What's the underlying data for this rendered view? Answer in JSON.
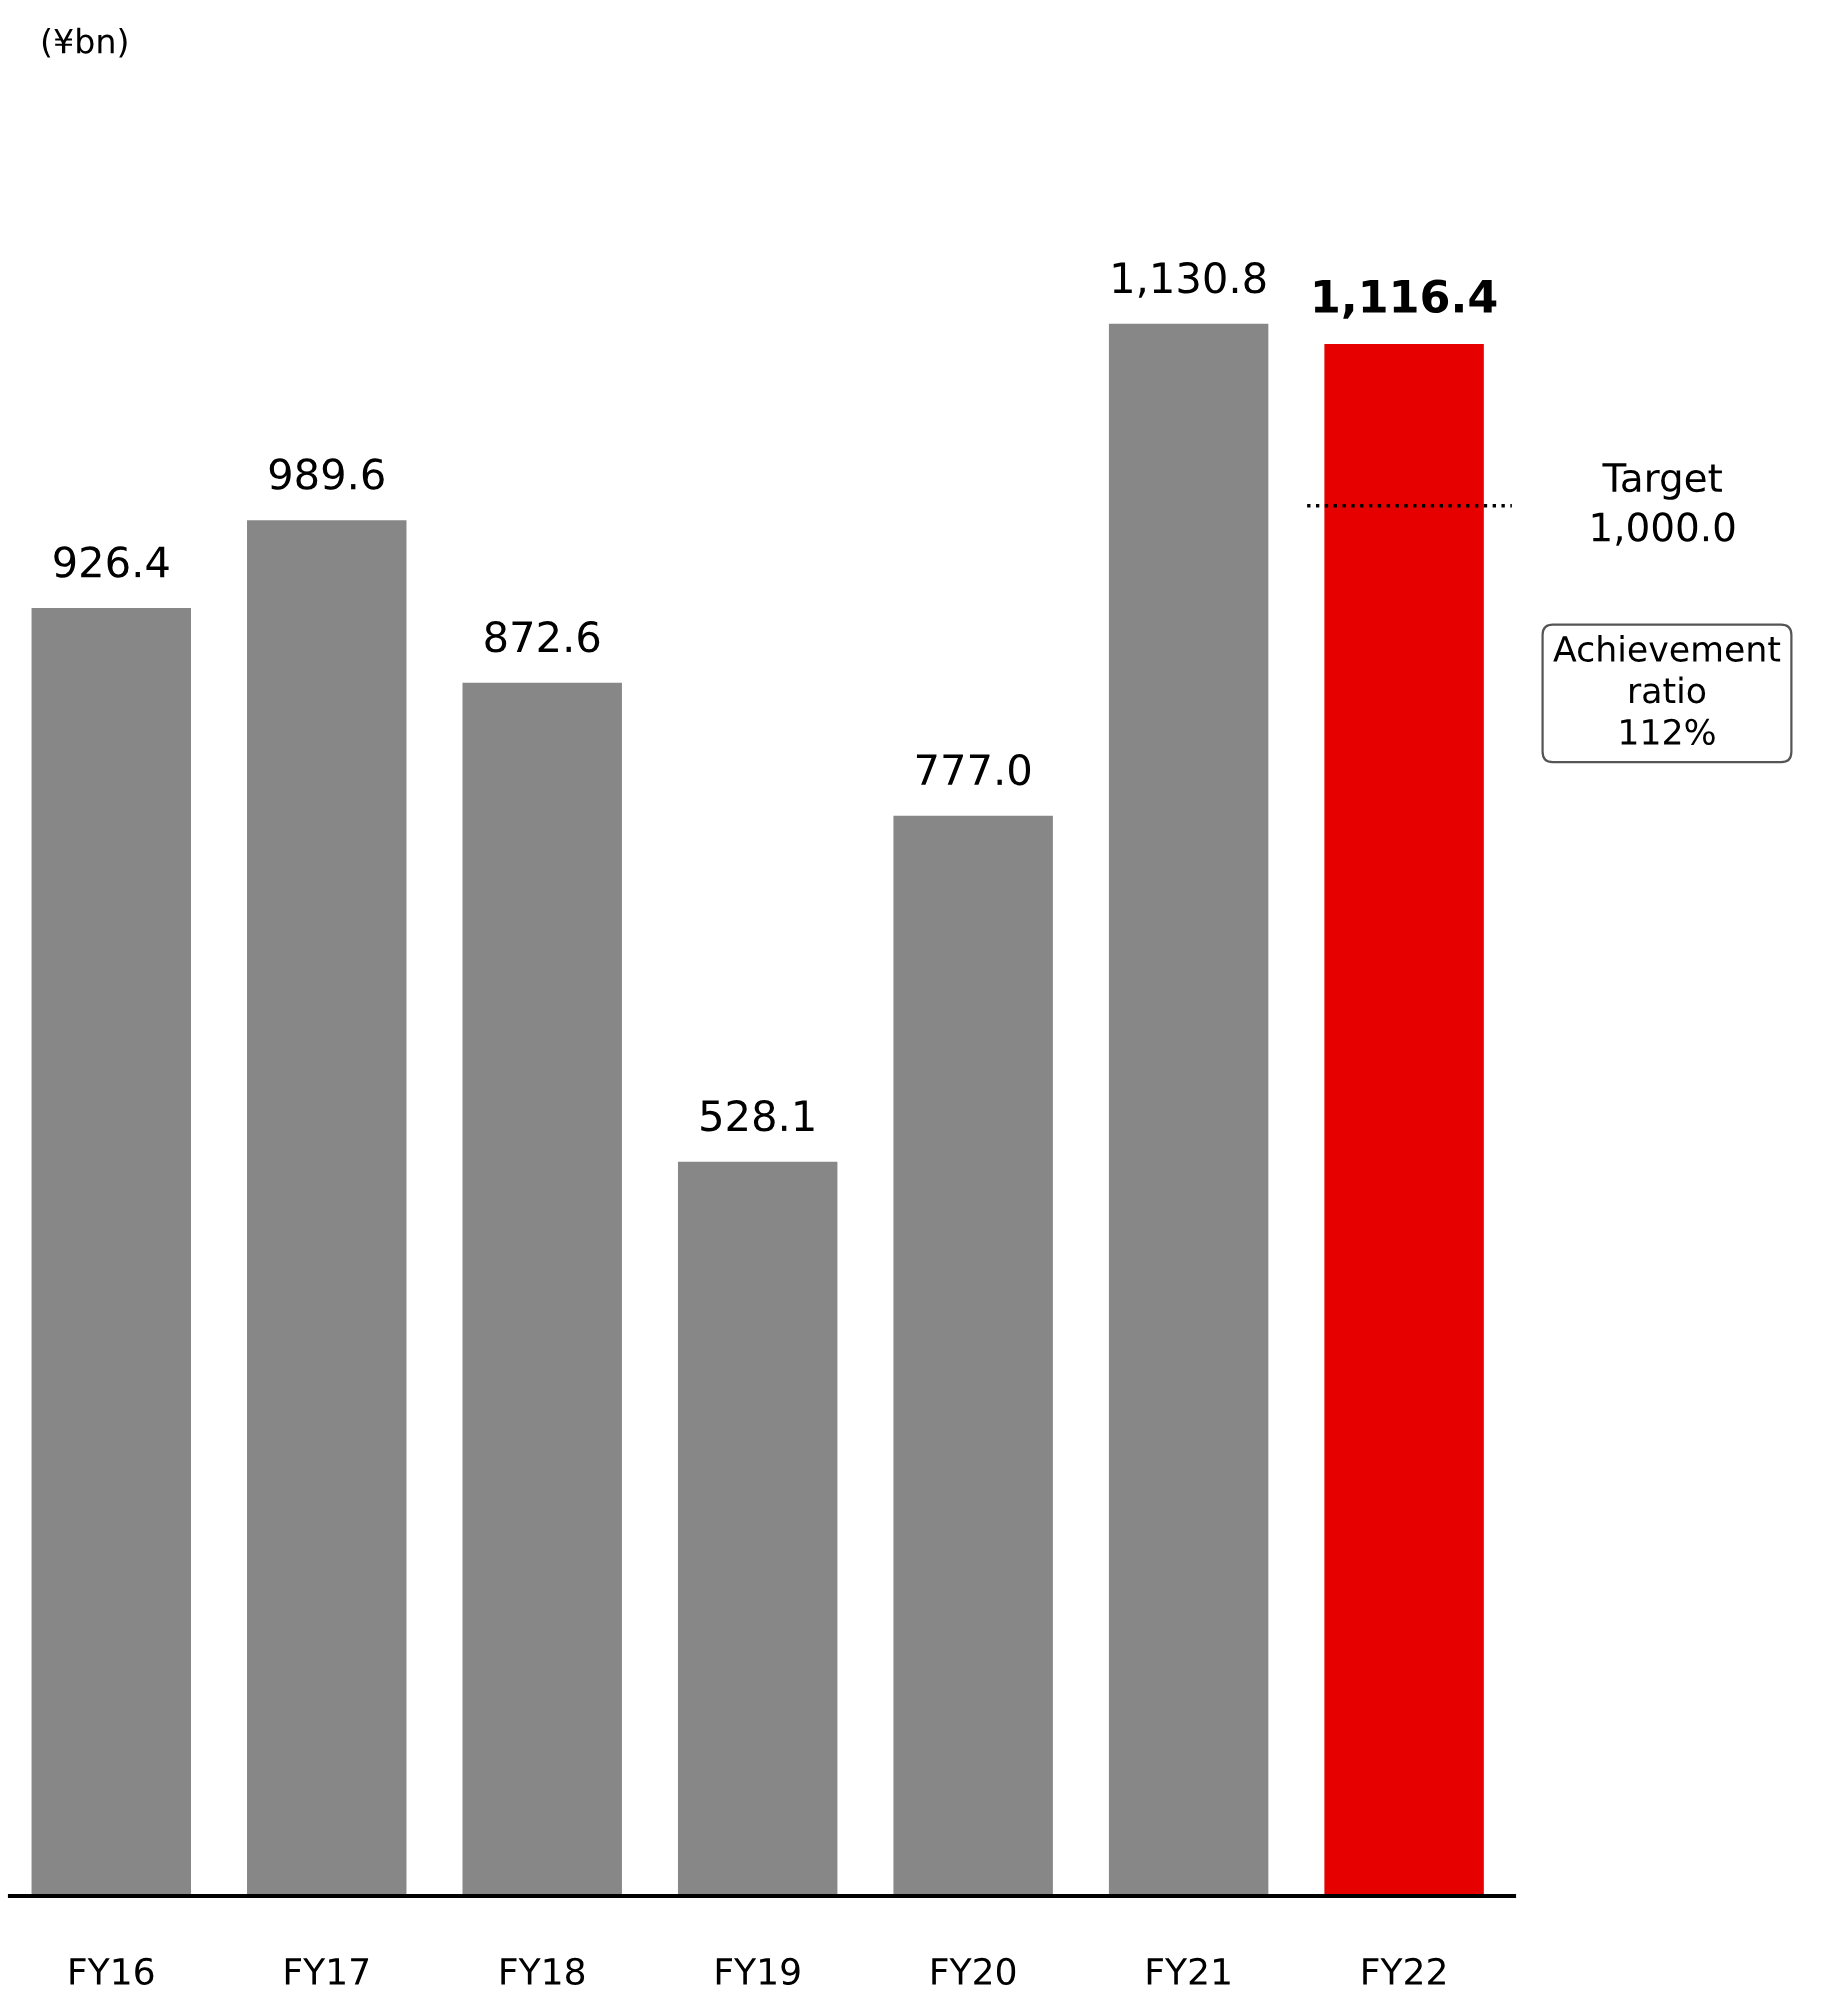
{
  "chart_data": {
    "type": "bar",
    "categories": [
      "FY16",
      "FY17",
      "FY18",
      "FY19",
      "FY20",
      "FY21",
      "FY22"
    ],
    "values": [
      926.4,
      989.6,
      872.6,
      528.1,
      777.0,
      1130.8,
      1116.4
    ],
    "colors": [
      "#878787",
      "#878787",
      "#878787",
      "#878787",
      "#878787",
      "#878787",
      "#e60000"
    ],
    "value_labels": [
      "926.4",
      "989.6",
      "872.6",
      "528.1",
      "777.0",
      "1,130.8",
      "1,116.4"
    ],
    "relative": false,
    "ref_lines": [
      {
        "axis": "y",
        "value": 1000.0,
        "label": "Target\n1,000.0",
        "color": "#000000",
        "line_style": "dotted"
      }
    ],
    "annotations": [
      "(¥bn)",
      "Achievement\nratio\n112%"
    ],
    "grid": false,
    "legend": false
  }
}
